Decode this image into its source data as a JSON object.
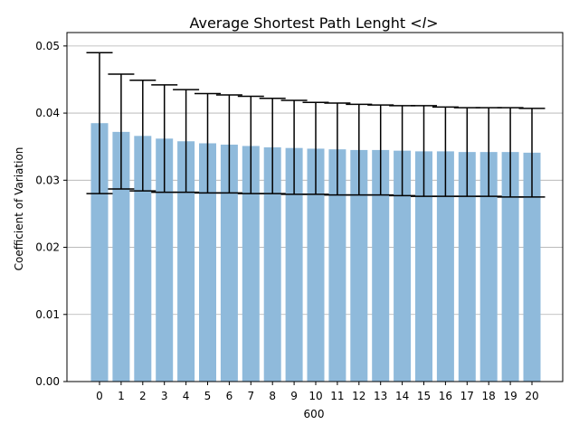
{
  "chart_data": {
    "type": "bar",
    "title": "Average Shortest Path Lenght  <l>",
    "title_parts": {
      "prefix": "Average Shortest Path Lenght  <",
      "italic": "l",
      "suffix": ">"
    },
    "xlabel": "600",
    "ylabel": "Coefficient of Variation",
    "categories": [
      "0",
      "1",
      "2",
      "3",
      "4",
      "5",
      "6",
      "7",
      "8",
      "9",
      "10",
      "11",
      "12",
      "13",
      "14",
      "15",
      "16",
      "17",
      "18",
      "19",
      "20"
    ],
    "values": [
      0.0385,
      0.0372,
      0.0366,
      0.0362,
      0.0358,
      0.0355,
      0.0353,
      0.0351,
      0.0349,
      0.0348,
      0.0347,
      0.0346,
      0.0345,
      0.0345,
      0.0344,
      0.0343,
      0.0343,
      0.0342,
      0.0342,
      0.0342,
      0.0341
    ],
    "error_low": [
      0.028,
      0.0287,
      0.0284,
      0.0282,
      0.0282,
      0.0281,
      0.0281,
      0.028,
      0.028,
      0.0279,
      0.0279,
      0.0278,
      0.0278,
      0.0278,
      0.0277,
      0.0276,
      0.0276,
      0.0276,
      0.0276,
      0.0275,
      0.0275
    ],
    "error_high": [
      0.049,
      0.0458,
      0.0449,
      0.0442,
      0.0435,
      0.0429,
      0.0427,
      0.0425,
      0.0422,
      0.0419,
      0.0416,
      0.0415,
      0.0413,
      0.0412,
      0.0411,
      0.0411,
      0.0409,
      0.0408,
      0.0408,
      0.0408,
      0.0407
    ],
    "ylim": [
      0,
      0.052
    ],
    "yticks": [
      "0.00",
      "0.01",
      "0.02",
      "0.03",
      "0.04",
      "0.05"
    ],
    "grid": "y",
    "bar_color": "#8fbadb",
    "error_color": "#000000"
  }
}
